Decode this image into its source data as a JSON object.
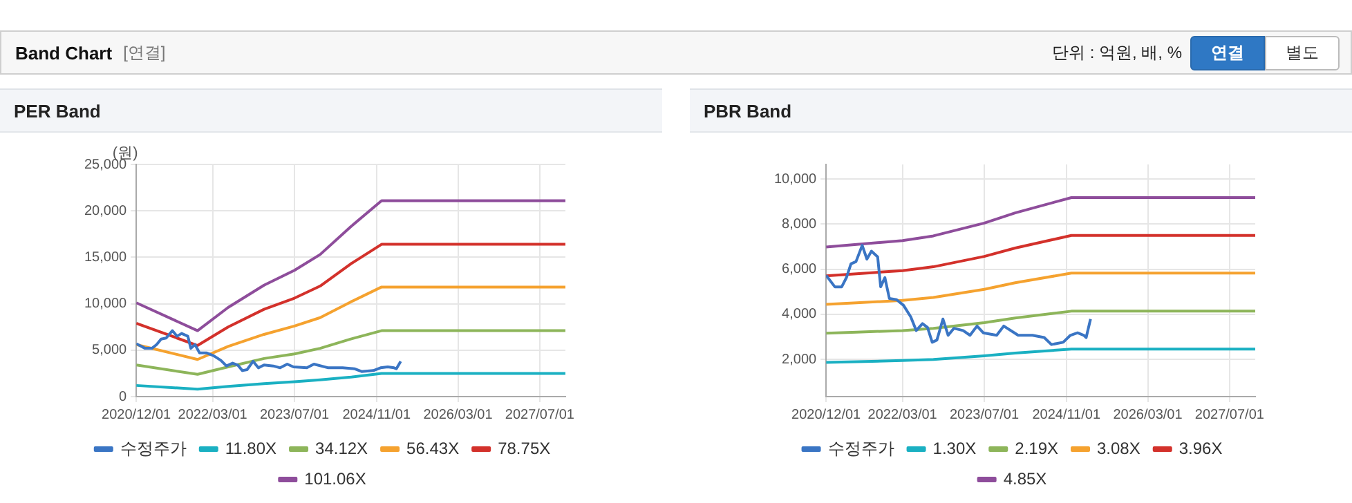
{
  "chart_data": [
    {
      "type": "other",
      "title": "Band Chart",
      "annotations": [
        "[연결]",
        "단위 : 억원, 배, %",
        "연결",
        "별도"
      ]
    },
    {
      "type": "line",
      "title": "PER Band",
      "ylabel": "(원)",
      "xlim": [
        "2020-12-01",
        "2027-12-01"
      ],
      "xticks": [
        {
          "value": "2020-12-01",
          "label": "2020/12/01"
        },
        {
          "value": "2022-03-01",
          "label": "2022/03/01"
        },
        {
          "value": "2023-07-01",
          "label": "2023/07/01"
        },
        {
          "value": "2024-11-01",
          "label": "2024/11/01"
        },
        {
          "value": "2026-03-01",
          "label": "2026/03/01"
        },
        {
          "value": "2027-07-01",
          "label": "2027/07/01"
        }
      ],
      "ylim": [
        0,
        25000
      ],
      "yticks": [
        0,
        {
          "value": 5000,
          "label": "5,000"
        },
        {
          "value": 10000,
          "label": "10,000"
        },
        {
          "value": 15000,
          "label": "15,000"
        },
        {
          "value": 20000,
          "label": "20,000"
        },
        {
          "value": 25000,
          "label": "25,000"
        }
      ],
      "grid": true,
      "legend": "bottom",
      "marker": "none",
      "line_style": "solid",
      "series": [
        {
          "name": "수정주가",
          "color": "#3a75c4",
          "x": [
            "2020-12-01",
            "2021-01-22",
            "2021-03-04",
            "2021-04-01",
            "2021-04-28",
            "2021-05-28",
            "2021-07-04",
            "2021-08-01",
            "2021-08-28",
            "2021-10-04",
            "2021-10-22",
            "2021-11-16",
            "2021-12-13",
            "2022-01-25",
            "2022-03-07",
            "2022-04-19",
            "2022-05-22",
            "2022-06-28",
            "2022-07-28",
            "2022-08-25",
            "2022-09-22",
            "2022-10-28",
            "2022-11-28",
            "2023-01-01",
            "2023-02-25",
            "2023-04-07",
            "2023-05-19",
            "2023-06-25",
            "2023-09-13",
            "2023-10-25",
            "2024-01-19",
            "2024-04-13",
            "2024-06-22",
            "2024-08-04",
            "2024-10-13",
            "2024-11-25",
            "2025-01-07",
            "2025-02-13",
            "2025-02-27",
            "2025-03-25"
          ],
          "values": [
            5700,
            5200,
            5200,
            5600,
            6200,
            6300,
            7100,
            6500,
            6800,
            6500,
            5200,
            5600,
            4700,
            4700,
            4400,
            3900,
            3300,
            3600,
            3400,
            2800,
            2900,
            3800,
            3100,
            3400,
            3300,
            3100,
            3500,
            3200,
            3100,
            3500,
            3100,
            3100,
            3000,
            2700,
            2800,
            3100,
            3200,
            3100,
            3000,
            3800
          ]
        },
        {
          "name": "11.80X",
          "color": "#1ab0c2",
          "x": [
            "2020-12-01",
            "2021-12-01",
            "2022-06-01",
            "2023-01-01",
            "2023-07-01",
            "2023-12-01",
            "2024-06-01",
            "2024-12-01",
            "2027-12-01"
          ],
          "values": [
            1200,
            800,
            1100,
            1400,
            1600,
            1800,
            2100,
            2500,
            2500
          ]
        },
        {
          "name": "34.12X",
          "color": "#8db55a",
          "x": [
            "2020-12-01",
            "2021-12-01",
            "2022-06-01",
            "2023-01-01",
            "2023-07-01",
            "2023-12-01",
            "2024-06-01",
            "2024-12-01",
            "2027-12-01"
          ],
          "values": [
            3400,
            2400,
            3200,
            4100,
            4600,
            5200,
            6200,
            7100,
            7100
          ]
        },
        {
          "name": "56.43X",
          "color": "#f5a22f",
          "x": [
            "2020-12-01",
            "2021-12-01",
            "2022-06-01",
            "2023-01-01",
            "2023-07-01",
            "2023-12-01",
            "2024-06-01",
            "2024-12-01",
            "2027-12-01"
          ],
          "values": [
            5600,
            4000,
            5400,
            6700,
            7600,
            8500,
            10200,
            11800,
            11800
          ]
        },
        {
          "name": "78.75X",
          "color": "#d3312b",
          "x": [
            "2020-12-01",
            "2021-12-01",
            "2022-06-01",
            "2023-01-01",
            "2023-07-01",
            "2023-12-01",
            "2024-06-01",
            "2024-12-01",
            "2027-12-01"
          ],
          "values": [
            7900,
            5500,
            7500,
            9400,
            10600,
            11900,
            14300,
            16400,
            16400
          ]
        },
        {
          "name": "101.06X",
          "color": "#8e4d9b",
          "x": [
            "2020-12-01",
            "2021-12-01",
            "2022-06-01",
            "2023-01-01",
            "2023-07-01",
            "2023-12-01",
            "2024-06-01",
            "2024-12-01",
            "2027-12-01"
          ],
          "values": [
            10100,
            7100,
            9600,
            12000,
            13600,
            15300,
            18300,
            21100,
            21100
          ]
        }
      ]
    },
    {
      "type": "line",
      "title": "PBR Band",
      "xlim": [
        "2020-12-01",
        "2027-12-01"
      ],
      "xticks": [
        {
          "value": "2020-12-01",
          "label": "2020/12/01"
        },
        {
          "value": "2022-03-01",
          "label": "2022/03/01"
        },
        {
          "value": "2023-07-01",
          "label": "2023/07/01"
        },
        {
          "value": "2024-11-01",
          "label": "2024/11/01"
        },
        {
          "value": "2026-03-01",
          "label": "2026/03/01"
        },
        {
          "value": "2027-07-01",
          "label": "2027/07/01"
        }
      ],
      "ylim": [
        350,
        10650
      ],
      "yticks": [
        {
          "value": 2000,
          "label": "2,000"
        },
        {
          "value": 4000,
          "label": "4,000"
        },
        {
          "value": 6000,
          "label": "6,000"
        },
        {
          "value": 8000,
          "label": "8,000"
        },
        {
          "value": 10000,
          "label": "10,000"
        }
      ],
      "grid": true,
      "legend": "bottom",
      "marker": "none",
      "line_style": "solid",
      "series": [
        {
          "name": "수정주가",
          "color": "#3a75c4",
          "x": [
            "2020-12-01",
            "2021-01-22",
            "2021-03-04",
            "2021-04-01",
            "2021-04-28",
            "2021-05-28",
            "2021-07-04",
            "2021-08-01",
            "2021-08-28",
            "2021-10-04",
            "2021-10-22",
            "2021-11-16",
            "2021-12-13",
            "2022-01-25",
            "2022-03-07",
            "2022-04-19",
            "2022-05-22",
            "2022-06-28",
            "2022-07-28",
            "2022-08-25",
            "2022-09-22",
            "2022-10-28",
            "2022-11-28",
            "2023-01-01",
            "2023-02-25",
            "2023-04-07",
            "2023-05-19",
            "2023-06-25",
            "2023-09-13",
            "2023-10-25",
            "2024-01-19",
            "2024-04-13",
            "2024-06-22",
            "2024-08-04",
            "2024-10-13",
            "2024-11-25",
            "2025-01-07",
            "2025-02-13",
            "2025-02-27",
            "2025-03-25"
          ],
          "values": [
            5730,
            5220,
            5220,
            5630,
            6240,
            6340,
            7060,
            6450,
            6800,
            6550,
            5220,
            5630,
            4700,
            4650,
            4400,
            3890,
            3280,
            3590,
            3420,
            2760,
            2860,
            3790,
            3070,
            3380,
            3280,
            3070,
            3480,
            3180,
            3070,
            3480,
            3070,
            3070,
            2970,
            2660,
            2760,
            3070,
            3180,
            3070,
            2970,
            3790
          ]
        },
        {
          "name": "1.30X",
          "color": "#1ab0c2",
          "x": [
            "2020-12-01",
            "2021-06-01",
            "2022-03-01",
            "2022-09-01",
            "2023-07-01",
            "2024-01-01",
            "2024-12-01",
            "2027-12-01"
          ],
          "values": [
            1870,
            1900,
            1950,
            2000,
            2160,
            2280,
            2460,
            2460
          ]
        },
        {
          "name": "2.19X",
          "color": "#8db55a",
          "x": [
            "2020-12-01",
            "2021-06-01",
            "2022-03-01",
            "2022-09-01",
            "2023-07-01",
            "2024-01-01",
            "2024-12-01",
            "2027-12-01"
          ],
          "values": [
            3160,
            3210,
            3280,
            3380,
            3630,
            3840,
            4140,
            4140
          ]
        },
        {
          "name": "3.08X",
          "color": "#f5a22f",
          "x": [
            "2020-12-01",
            "2021-06-01",
            "2022-03-01",
            "2022-09-01",
            "2023-07-01",
            "2024-01-01",
            "2024-12-01",
            "2027-12-01"
          ],
          "values": [
            4440,
            4510,
            4620,
            4750,
            5110,
            5400,
            5830,
            5830
          ]
        },
        {
          "name": "3.96X",
          "color": "#d3312b",
          "x": [
            "2020-12-01",
            "2021-06-01",
            "2022-03-01",
            "2022-09-01",
            "2023-07-01",
            "2024-01-01",
            "2024-12-01",
            "2027-12-01"
          ],
          "values": [
            5710,
            5800,
            5940,
            6110,
            6570,
            6940,
            7500,
            7500
          ]
        },
        {
          "name": "4.85X",
          "color": "#8e4d9b",
          "x": [
            "2020-12-01",
            "2021-06-01",
            "2022-03-01",
            "2022-09-01",
            "2023-07-01",
            "2024-01-01",
            "2024-12-01",
            "2027-12-01"
          ],
          "values": [
            6990,
            7100,
            7270,
            7480,
            8050,
            8500,
            9180,
            9180
          ]
        }
      ]
    }
  ]
}
